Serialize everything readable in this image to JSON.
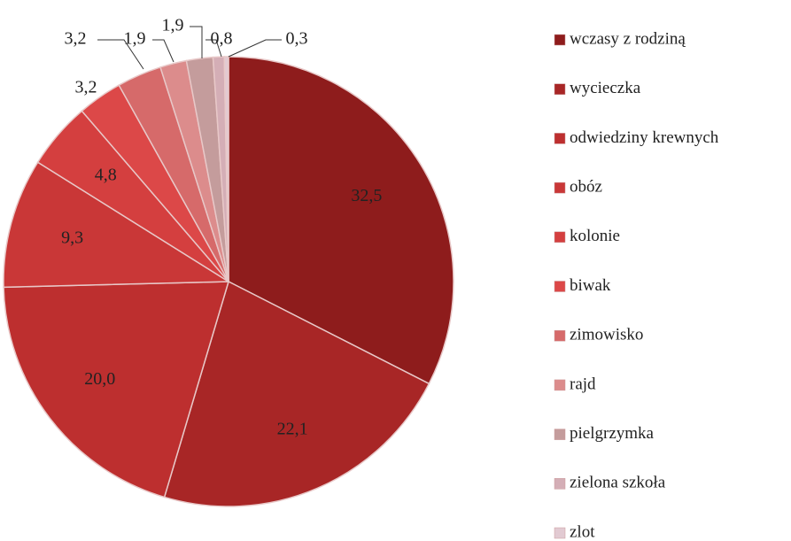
{
  "chart_data": {
    "type": "pie",
    "categories": [
      "wczasy z rodziną",
      "wycieczka",
      "odwiedziny krewnych",
      "obóz",
      "kolonie",
      "biwak",
      "zimowisko",
      "rajd",
      "pielgrzymka",
      "zielona szkoła",
      "zlot"
    ],
    "values": [
      32.5,
      22.1,
      20.0,
      9.3,
      4.8,
      3.2,
      3.2,
      1.9,
      1.9,
      0.8,
      0.3
    ],
    "value_labels": [
      "32,5",
      "22,1",
      "20,0",
      "9,3",
      "4,8",
      "3,2",
      "3,2",
      "1,9",
      "1,9",
      "0,8",
      "0,3"
    ],
    "colors": [
      "#8e1c1c",
      "#a82626",
      "#bd2f2f",
      "#c93737",
      "#d43f3f",
      "#dc4848",
      "#d66a6a",
      "#dc8c8c",
      "#c49c9c",
      "#d4aeb6",
      "#e2cad2"
    ],
    "legend": "right"
  }
}
